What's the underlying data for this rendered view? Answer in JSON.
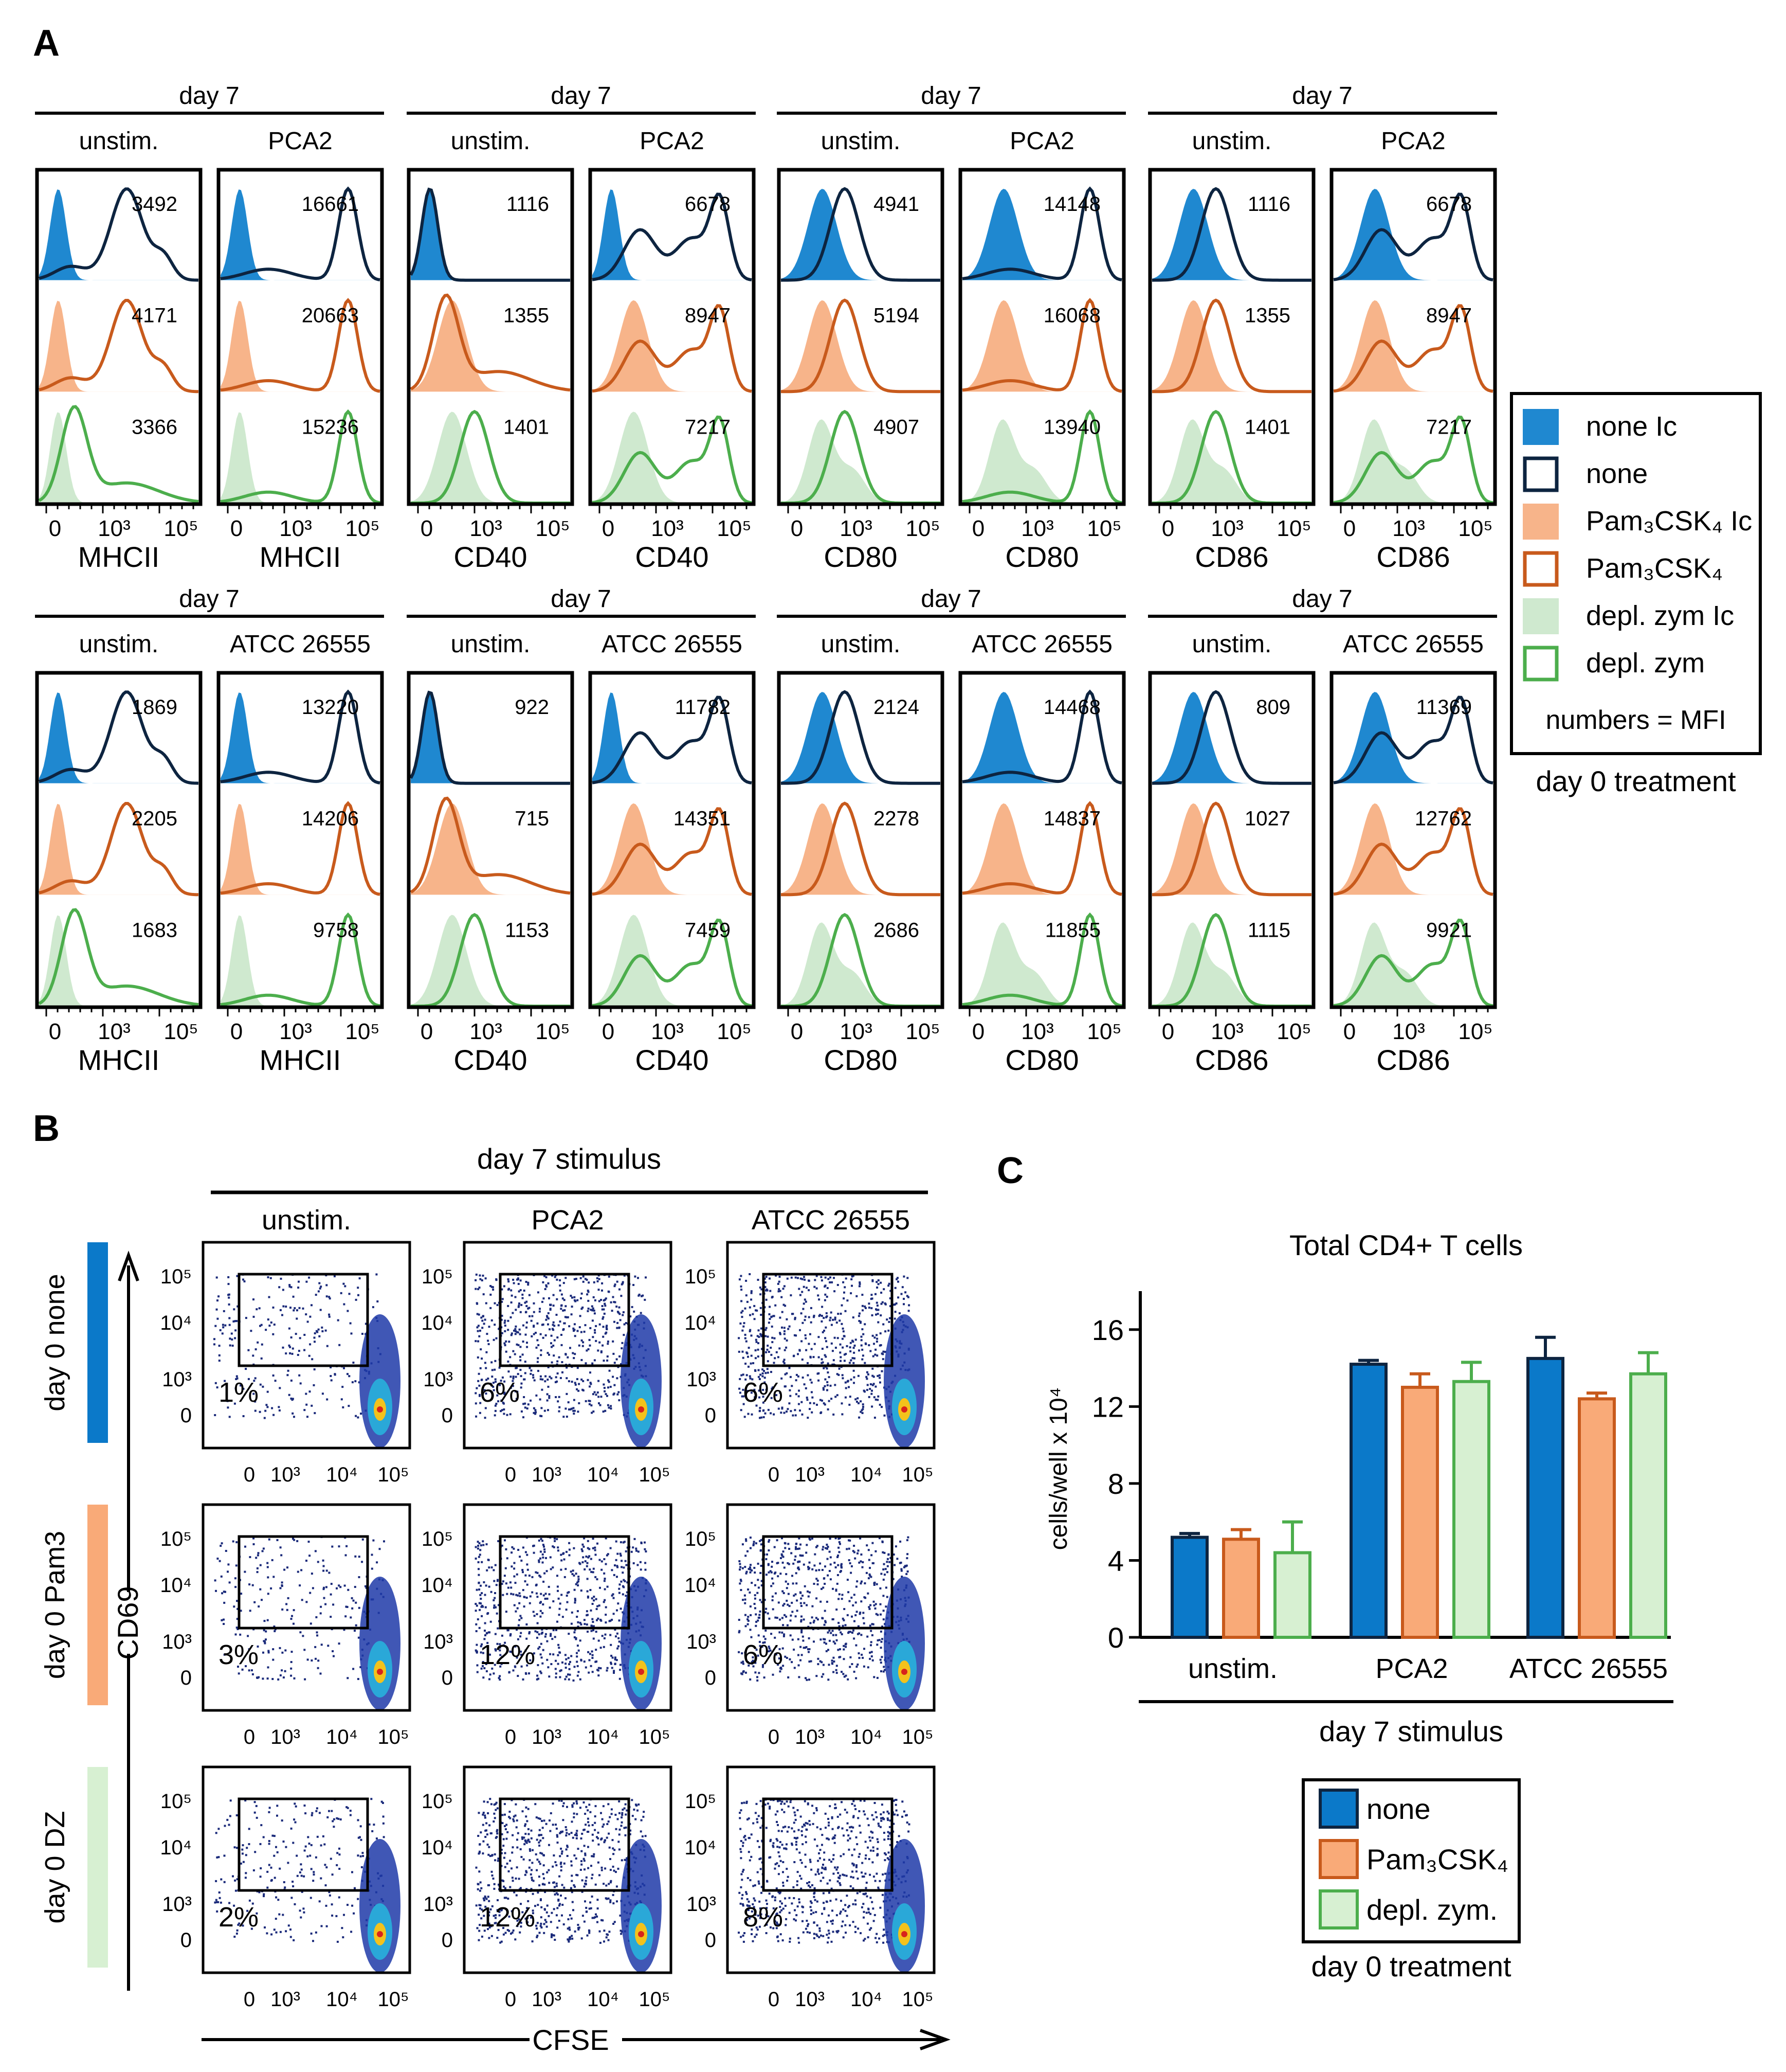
{
  "colors": {
    "none_fill": "#1f88d0",
    "none_line": "#0d2440",
    "pam_fill": "#f7b48a",
    "pam_line": "#c85a1c",
    "dz_fill": "#cfe9cf",
    "dz_line": "#4cae4c",
    "bar_none": "#0b79c9",
    "bar_pam": "#f9aa78",
    "bar_dz": "#d7f0d2"
  },
  "panel_a": {
    "letter": "A",
    "day_label": "day 7",
    "x_ticks": [
      "0",
      "10³",
      "10⁵"
    ],
    "rows": [
      {
        "stim_label": "PCA2",
        "groups": [
          {
            "marker": "MHCII",
            "unstim_mfi": [
              "3492",
              "4171",
              "3366"
            ],
            "stim_mfi": [
              "16661",
              "20663",
              "15236"
            ]
          },
          {
            "marker": "CD40",
            "unstim_mfi": [
              "1116",
              "1355",
              "1401"
            ],
            "stim_mfi": [
              "6678",
              "8947",
              "7217"
            ]
          },
          {
            "marker": "CD80",
            "unstim_mfi": [
              "4941",
              "5194",
              "4907"
            ],
            "stim_mfi": [
              "14148",
              "16068",
              "13940"
            ]
          },
          {
            "marker": "CD86",
            "unstim_mfi": [
              "1116",
              "1355",
              "1401"
            ],
            "stim_mfi": [
              "6678",
              "8947",
              "7217"
            ]
          }
        ]
      },
      {
        "stim_label": "ATCC 26555",
        "groups": [
          {
            "marker": "MHCII",
            "unstim_mfi": [
              "1869",
              "2205",
              "1683"
            ],
            "stim_mfi": [
              "13220",
              "14206",
              "9758"
            ]
          },
          {
            "marker": "CD40",
            "unstim_mfi": [
              "922",
              "715",
              "1153"
            ],
            "stim_mfi": [
              "11782",
              "14351",
              "7459"
            ]
          },
          {
            "marker": "CD80",
            "unstim_mfi": [
              "2124",
              "2278",
              "2686"
            ],
            "stim_mfi": [
              "14468",
              "14837",
              "11855"
            ]
          },
          {
            "marker": "CD86",
            "unstim_mfi": [
              "809",
              "1027",
              "1115"
            ],
            "stim_mfi": [
              "11369",
              "12762",
              "9921"
            ]
          }
        ]
      }
    ],
    "unstim_label": "unstim.",
    "legend": {
      "items": [
        {
          "label": "none Ic",
          "style": "fill",
          "color": "#1f88d0"
        },
        {
          "label": "none",
          "style": "line",
          "color": "#0d2440"
        },
        {
          "label": "Pam₃CSK₄ Ic",
          "style": "fill",
          "color": "#f7b48a"
        },
        {
          "label": "Pam₃CSK₄",
          "style": "line",
          "color": "#c85a1c"
        },
        {
          "label": "depl. zym Ic",
          "style": "fill",
          "color": "#cfe9cf"
        },
        {
          "label": "depl. zym",
          "style": "line",
          "color": "#4cae4c"
        }
      ],
      "note": "numbers = MFI",
      "caption": "day 0 treatment"
    }
  },
  "panel_b": {
    "letter": "B",
    "title": "day 7 stimulus",
    "columns": [
      "unstim.",
      "PCA2",
      "ATCC 26555"
    ],
    "rows": [
      {
        "label": "day 0 none",
        "color": "#0b79c9",
        "percents": [
          "1%",
          "6%",
          "6%"
        ]
      },
      {
        "label": "day 0 Pam3",
        "color": "#f9aa78",
        "percents": [
          "3%",
          "12%",
          "6%"
        ]
      },
      {
        "label": "day 0 DZ",
        "color": "#d7f0d2",
        "percents": [
          "2%",
          "12%",
          "8%"
        ]
      }
    ],
    "y_axis_label": "CD69",
    "x_axis_label": "CFSE",
    "y_ticks": [
      "10⁵",
      "10⁴",
      "10³",
      "0"
    ],
    "x_ticks": [
      "0",
      "10³",
      "10⁴",
      "10⁵"
    ]
  },
  "panel_c": {
    "letter": "C",
    "legend": [
      "none",
      "Pam₃CSK₄",
      "depl. zym."
    ],
    "legend_caption": "day 0 treatment"
  },
  "chart_data": {
    "type": "bar",
    "title": "Total CD4+ T cells",
    "xlabel": "day 7 stimulus",
    "ylabel": "cells/well x 10⁴",
    "ylim": [
      0,
      18
    ],
    "yticks": [
      0,
      4,
      8,
      12,
      16
    ],
    "categories": [
      "unstim.",
      "PCA2",
      "ATCC 26555"
    ],
    "series": [
      {
        "name": "none",
        "values": [
          5.2,
          14.2,
          14.5
        ],
        "errors": [
          0.2,
          0.2,
          1.1
        ]
      },
      {
        "name": "Pam₃CSK₄",
        "values": [
          5.1,
          13.0,
          12.4
        ],
        "errors": [
          0.5,
          0.7,
          0.3
        ]
      },
      {
        "name": "depl. zym.",
        "values": [
          4.4,
          13.3,
          13.7
        ],
        "errors": [
          1.6,
          1.0,
          1.1
        ]
      }
    ]
  }
}
